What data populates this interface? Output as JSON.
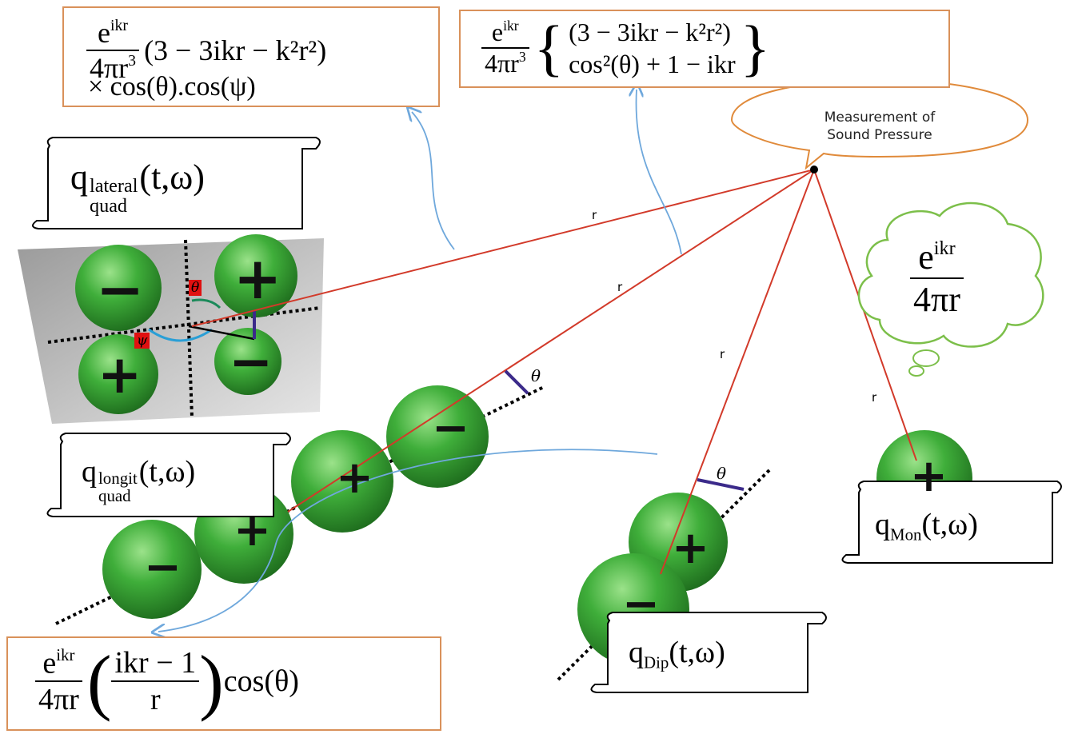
{
  "formulas": {
    "lateral_top": {
      "num": "e",
      "num_sup": "ikr",
      "den": "4πr",
      "den_sup": "3",
      "paren": "(3 − 3ikr − k²r²)",
      "line2": "× cos(θ).cos(ψ)"
    },
    "longit_top": {
      "num": "e",
      "num_sup": "ikr",
      "den": "4πr",
      "den_sup": "3",
      "line1": "(3 − 3ikr − k²r²)",
      "line2": "cos²(θ) + 1 − ikr"
    },
    "dipole_bottom": {
      "num": "e",
      "num_sup": "ikr",
      "den": "4πr",
      "inner_num": "ikr − 1",
      "inner_den": "r",
      "tail": "cos(θ)"
    },
    "monopole_cloud": {
      "num": "e",
      "num_sup": "ikr",
      "den": "4πr"
    }
  },
  "callout": {
    "line1": "Measurement of",
    "line2": "Sound Pressure"
  },
  "scrolls": {
    "lateral": {
      "q": "q",
      "sup": "lateral",
      "sub": "quad",
      "args": "(t,ω)"
    },
    "longit": {
      "q": "q",
      "sup": "longit",
      "sub": "quad",
      "args": "(t,ω)"
    },
    "monopole": {
      "q": "q",
      "sub": "Mon",
      "args": "(t,ω)"
    },
    "dipole": {
      "q": "q",
      "sub": "Dip",
      "args": "(t,ω)"
    }
  },
  "labels": {
    "r": "r",
    "theta": "θ",
    "psi": "ψ"
  },
  "signs": {
    "plus": "+",
    "minus": "−"
  },
  "colors": {
    "ray": "#d23a2a",
    "arrow": "#6fa8dc",
    "box_border": "#d9915a",
    "sphere": "#3aa63a",
    "cloud": "#7cbf4a",
    "panel": "#b8b8b8"
  }
}
